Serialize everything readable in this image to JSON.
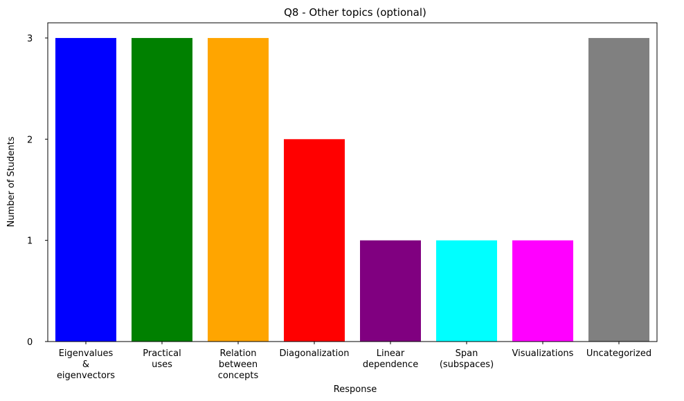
{
  "chart_data": {
    "type": "bar",
    "title": "Q8 - Other topics (optional)",
    "xlabel": "Response",
    "ylabel": "Number of Students",
    "categories": [
      "Eigenvalues & eigenvectors",
      "Practical uses",
      "Relation between concepts",
      "Diagonalization",
      "Linear dependence",
      "Span (subspaces)",
      "Visualizations",
      "Uncategorized"
    ],
    "category_display_lines": [
      [
        "Eigenvalues",
        "&",
        "eigenvectors"
      ],
      [
        "Practical",
        "uses"
      ],
      [
        "Relation",
        "between",
        "concepts"
      ],
      [
        "Diagonalization"
      ],
      [
        "Linear",
        "dependence"
      ],
      [
        "Span",
        "(subspaces)"
      ],
      [
        "Visualizations"
      ],
      [
        "Uncategorized"
      ]
    ],
    "values": [
      3,
      3,
      3,
      2,
      1,
      1,
      1,
      3
    ],
    "colors": [
      "#0000ff",
      "#008000",
      "#ffa500",
      "#ff0000",
      "#800080",
      "#00ffff",
      "#ff00ff",
      "#808080"
    ],
    "yticks": [
      0,
      1,
      2,
      3
    ],
    "ylim": [
      0,
      3.15
    ],
    "grid": false,
    "legend": "none"
  }
}
